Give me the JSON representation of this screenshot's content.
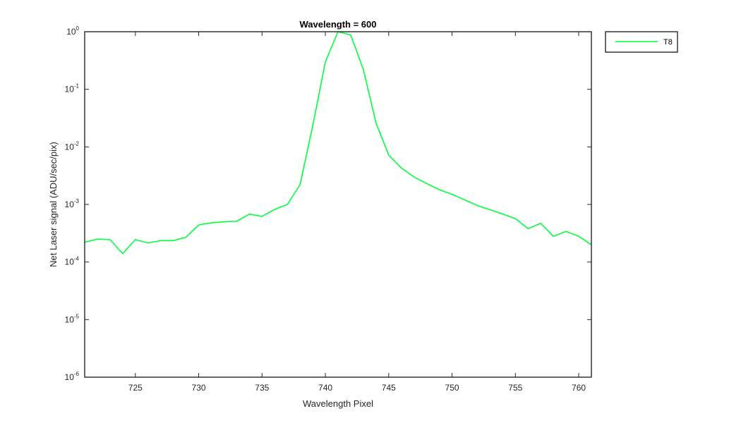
{
  "chart_data": {
    "type": "line",
    "title": "Wavelength = 600",
    "xlabel": "Wavelength Pixel",
    "ylabel": "Net Laser signal  (ADU/sec/pix)",
    "xlim": [
      721,
      761
    ],
    "ylim": [
      1e-06,
      1
    ],
    "yscale": "log",
    "grid": false,
    "legend_position": "top-right-outside",
    "x_ticks": [
      725,
      730,
      735,
      740,
      745,
      750,
      755,
      760
    ],
    "y_ticks": [
      {
        "mant": "10",
        "exp": "-6",
        "value": 1e-06
      },
      {
        "mant": "10",
        "exp": "-5",
        "value": 1e-05
      },
      {
        "mant": "10",
        "exp": "-4",
        "value": 0.0001
      },
      {
        "mant": "10",
        "exp": "-3",
        "value": 0.001
      },
      {
        "mant": "10",
        "exp": "-2",
        "value": 0.01
      },
      {
        "mant": "10",
        "exp": "-1",
        "value": 0.1
      },
      {
        "mant": "10",
        "exp": "0",
        "value": 1
      }
    ],
    "series": [
      {
        "name": "T8",
        "color": "#00ff40",
        "x": [
          721,
          722,
          723,
          724,
          725,
          726,
          727,
          728,
          729,
          730,
          731,
          732,
          733,
          734,
          735,
          736,
          737,
          738,
          739,
          740,
          741,
          742,
          743,
          744,
          745,
          746,
          747,
          748,
          749,
          750,
          751,
          752,
          753,
          754,
          755,
          756,
          757,
          758,
          759,
          760,
          761
        ],
        "y": [
          0.00022,
          0.00025,
          0.000245,
          0.00014,
          0.000245,
          0.000215,
          0.000235,
          0.000235,
          0.00027,
          0.00044,
          0.00048,
          0.0005,
          0.00051,
          0.00068,
          0.00062,
          0.00082,
          0.001,
          0.0022,
          0.023,
          0.3,
          1.0,
          0.88,
          0.22,
          0.026,
          0.0072,
          0.0043,
          0.003,
          0.0023,
          0.0018,
          0.0015,
          0.0012,
          0.00096,
          0.00081,
          0.00068,
          0.00057,
          0.00038,
          0.00047,
          0.00028,
          0.00034,
          0.00028,
          0.0002
        ]
      }
    ]
  }
}
